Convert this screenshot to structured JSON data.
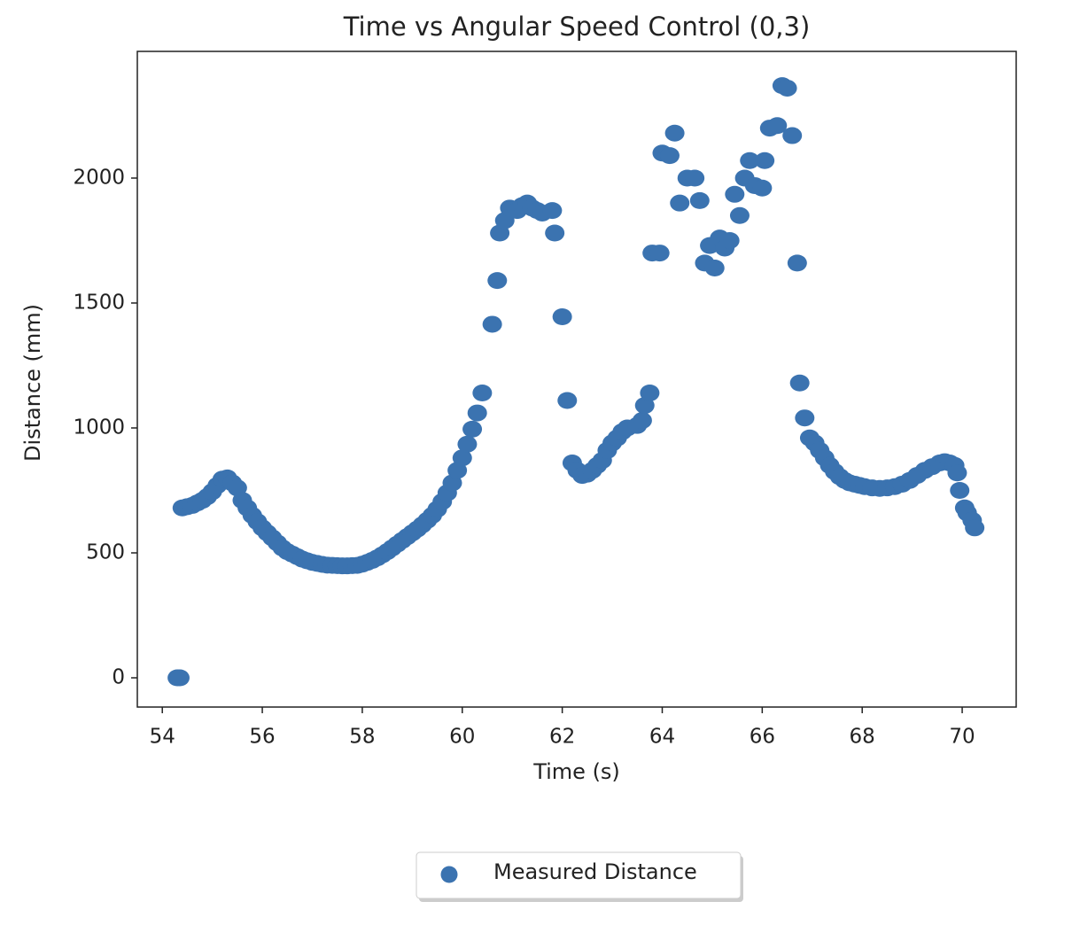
{
  "chart_data": {
    "type": "scatter",
    "title": "Time vs Angular Speed Control (0,3)",
    "x_label": "Time (s)",
    "y_label": "Distance (mm)",
    "x": [
      54.3,
      54.35,
      54.4,
      54.5,
      54.6,
      54.7,
      54.8,
      54.9,
      55.0,
      55.1,
      55.2,
      55.3,
      55.4,
      55.5,
      55.6,
      55.7,
      55.8,
      55.9,
      56.0,
      56.1,
      56.2,
      56.3,
      56.4,
      56.5,
      56.6,
      56.7,
      56.8,
      56.9,
      57.0,
      57.1,
      57.2,
      57.3,
      57.4,
      57.5,
      57.6,
      57.7,
      57.8,
      57.9,
      58.0,
      58.1,
      58.2,
      58.3,
      58.4,
      58.5,
      58.6,
      58.7,
      58.8,
      58.9,
      59.0,
      59.1,
      59.2,
      59.3,
      59.4,
      59.5,
      59.6,
      59.7,
      59.8,
      59.9,
      60.0,
      60.1,
      60.2,
      60.3,
      60.4,
      60.6,
      60.7,
      60.75,
      60.85,
      60.95,
      61.1,
      61.2,
      61.3,
      61.4,
      61.5,
      61.6,
      61.8,
      61.85,
      62.0,
      62.1,
      62.2,
      62.3,
      62.4,
      62.5,
      62.6,
      62.7,
      62.8,
      62.9,
      63.0,
      63.1,
      63.2,
      63.3,
      63.5,
      63.6,
      63.65,
      63.75,
      63.8,
      63.95,
      64.0,
      64.15,
      64.25,
      64.35,
      64.5,
      64.65,
      64.75,
      64.85,
      64.95,
      65.05,
      65.15,
      65.25,
      65.35,
      65.45,
      65.55,
      65.65,
      65.75,
      65.85,
      66.0,
      66.05,
      66.15,
      66.3,
      66.4,
      66.5,
      66.6,
      66.7,
      66.75,
      66.85,
      66.95,
      67.05,
      67.15,
      67.25,
      67.35,
      67.45,
      67.55,
      67.65,
      67.75,
      67.85,
      67.95,
      68.05,
      68.2,
      68.35,
      68.5,
      68.65,
      68.8,
      68.95,
      69.1,
      69.25,
      69.4,
      69.55,
      69.65,
      69.75,
      69.85,
      69.9,
      69.95,
      70.05,
      70.1,
      70.2,
      70.25
    ],
    "series": [
      {
        "name": "Measured Distance",
        "color": "#3b73b0",
        "values": [
          0,
          0,
          680,
          685,
          690,
          700,
          710,
          725,
          745,
          770,
          795,
          800,
          780,
          760,
          710,
          680,
          650,
          625,
          600,
          580,
          560,
          540,
          520,
          505,
          495,
          485,
          475,
          468,
          462,
          458,
          454,
          451,
          450,
          449,
          448,
          448,
          449,
          450,
          455,
          462,
          470,
          480,
          492,
          505,
          520,
          535,
          550,
          565,
          580,
          595,
          612,
          630,
          650,
          675,
          705,
          740,
          780,
          830,
          880,
          935,
          995,
          1060,
          1140,
          1415,
          1590,
          1780,
          1830,
          1880,
          1870,
          1890,
          1900,
          1880,
          1870,
          1860,
          1870,
          1780,
          1445,
          1110,
          860,
          830,
          810,
          815,
          830,
          850,
          870,
          910,
          940,
          960,
          985,
          1000,
          1010,
          1030,
          1090,
          1140,
          1700,
          1700,
          2100,
          2090,
          2180,
          1900,
          2000,
          2000,
          1910,
          1660,
          1730,
          1640,
          1760,
          1720,
          1750,
          1935,
          1850,
          2000,
          2070,
          1970,
          1960,
          2070,
          2200,
          2210,
          2370,
          2360,
          2170,
          1660,
          1180,
          1040,
          960,
          940,
          910,
          880,
          850,
          825,
          805,
          790,
          780,
          775,
          770,
          765,
          760,
          758,
          760,
          765,
          775,
          790,
          810,
          830,
          845,
          860,
          865,
          860,
          850,
          820,
          750,
          680,
          660,
          630,
          600
        ]
      }
    ],
    "xlim": [
      53.5,
      71.08
    ],
    "ylim": [
      -117,
      2507
    ],
    "xticks": [
      54,
      56,
      58,
      60,
      62,
      64,
      66,
      68,
      70
    ],
    "yticks": [
      0,
      500,
      1000,
      1500,
      2000
    ],
    "grid": false,
    "legend": "below"
  }
}
